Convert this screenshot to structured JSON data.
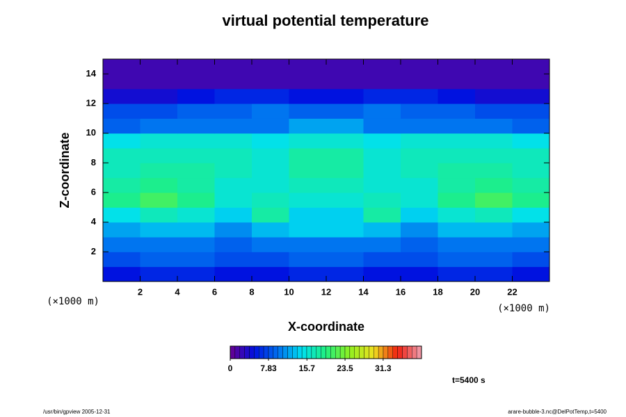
{
  "chart_data": {
    "type": "heatmap",
    "title": "virtual potential temperature",
    "x_label": "X-coordinate",
    "y_label": "Z-coordinate",
    "x_unit": "(×1000 m)",
    "y_unit": "(×1000 m)",
    "xlim": [
      0,
      24
    ],
    "ylim": [
      0,
      15
    ],
    "xticks": [
      2,
      4,
      6,
      8,
      10,
      12,
      14,
      16,
      18,
      20,
      22
    ],
    "yticks": [
      2,
      4,
      6,
      8,
      10,
      12,
      14
    ],
    "x": [
      1,
      3,
      5,
      7,
      9,
      11,
      13,
      15,
      17,
      19,
      21,
      23
    ],
    "y": [
      0.5,
      1.5,
      2.5,
      3.5,
      4.5,
      5.5,
      6.5,
      7.5,
      8.5,
      9.5,
      10.5,
      11.5,
      12.5,
      13.5,
      14.5
    ],
    "z": [
      [
        5,
        6,
        6,
        5,
        5,
        6,
        6,
        5,
        5,
        6,
        6,
        5
      ],
      [
        8,
        9,
        9,
        8,
        8,
        9,
        9,
        8,
        8,
        9,
        9,
        8
      ],
      [
        10,
        10,
        10,
        9,
        10,
        10,
        10,
        10,
        9,
        10,
        10,
        10
      ],
      [
        12,
        13,
        13,
        11,
        13,
        14,
        14,
        13,
        11,
        13,
        13,
        12
      ],
      [
        15,
        17,
        16,
        14,
        18,
        14,
        14,
        18,
        14,
        16,
        17,
        15
      ],
      [
        19,
        21,
        19,
        16,
        17,
        16,
        16,
        17,
        16,
        19,
        21,
        19
      ],
      [
        18,
        19,
        18,
        16,
        16,
        17,
        17,
        16,
        16,
        18,
        19,
        18
      ],
      [
        17,
        18,
        18,
        17,
        16,
        18,
        18,
        16,
        17,
        18,
        18,
        17
      ],
      [
        17,
        17,
        17,
        17,
        16,
        18,
        18,
        16,
        17,
        17,
        17,
        17
      ],
      [
        15,
        16,
        16,
        16,
        15,
        16,
        16,
        15,
        16,
        16,
        16,
        15
      ],
      [
        9,
        10,
        10,
        10,
        10,
        12,
        12,
        10,
        10,
        10,
        10,
        9
      ],
      [
        8,
        8,
        9,
        9,
        10,
        9,
        9,
        10,
        9,
        9,
        8,
        8
      ],
      [
        4,
        4,
        5,
        6,
        6,
        5,
        5,
        6,
        6,
        5,
        4,
        4
      ],
      [
        2,
        2,
        2,
        2,
        2,
        2,
        2,
        2,
        2,
        2,
        2,
        2
      ],
      [
        2,
        2,
        2,
        2,
        2,
        2,
        2,
        2,
        2,
        2,
        2,
        2
      ]
    ],
    "colorbar": {
      "lim": [
        0,
        39.15
      ],
      "ticks": [
        0,
        7.83,
        15.7,
        23.5,
        31.3
      ]
    },
    "colormap": [
      "#6a0090",
      "#0010e0",
      "#0070f0",
      "#00e0f0",
      "#20f080",
      "#90f020",
      "#f0e020",
      "#f02010",
      "#f0a0b0"
    ],
    "annotation": "t=5400 s",
    "footer_left": "/usr/bin/gpview 2005-12-31",
    "footer_right": "arare-bubble-3.nc@DelPotTemp,t=5400"
  }
}
